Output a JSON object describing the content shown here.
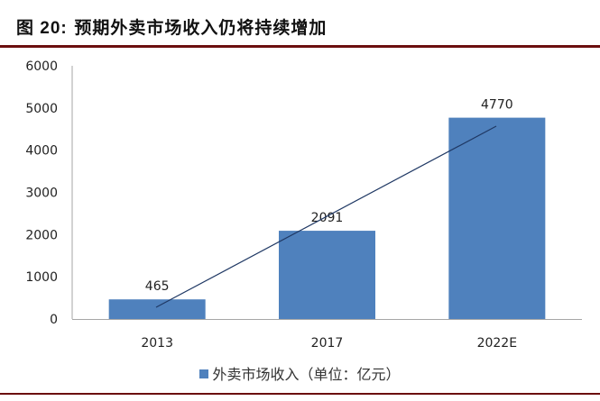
{
  "figure": {
    "label": "图 20:",
    "title": "预期外卖市场收入仍将持续增加"
  },
  "colors": {
    "bar": "#4f81bd",
    "trendline": "#1f3864",
    "rule": "#6b0f0f",
    "axis": "#a6a6a6"
  },
  "legend": {
    "label": "外卖市场收入（单位：亿元）"
  },
  "chart_data": {
    "type": "bar",
    "title": "预期外卖市场收入仍将持续增加",
    "categories": [
      "2013",
      "2017",
      "2022E"
    ],
    "series": [
      {
        "name": "外卖市场收入（单位：亿元）",
        "values": [
          465,
          2091,
          4770
        ]
      }
    ],
    "data_labels": [
      "465",
      "2091",
      "4770"
    ],
    "trendline": {
      "type": "linear",
      "from_category": "2013",
      "to_category": "2022E"
    },
    "xlabel": "",
    "ylabel": "",
    "ylim": [
      0,
      6000
    ],
    "yticks": [
      "0",
      "1000",
      "2000",
      "3000",
      "4000",
      "5000",
      "6000"
    ],
    "grid": false,
    "legend_position": "bottom"
  }
}
